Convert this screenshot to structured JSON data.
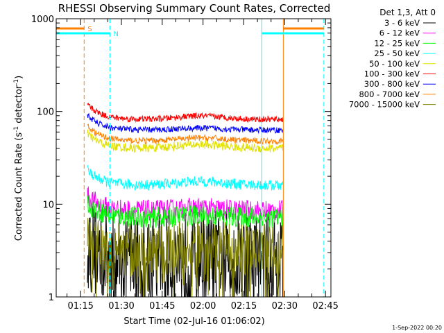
{
  "chart_data": {
    "type": "line",
    "title": "RHESSI Observing Summary Count Rates, Corrected",
    "xlabel": "Start Time (02-Jul-16 01:06:02)",
    "ylabel_main": "Corrected Count Rate (s",
    "ylabel_sup1": "-1",
    "ylabel_mid": " detector",
    "ylabel_sup2": "-1",
    "ylabel_end": ")",
    "y_scale": "log",
    "ylim": [
      1,
      1000
    ],
    "y_ticks": [
      {
        "value": 1,
        "label": "1"
      },
      {
        "value": 10,
        "label": "10"
      },
      {
        "value": 100,
        "label": "100"
      },
      {
        "value": 1000,
        "label": "1000"
      }
    ],
    "xlim_minutes": [
      66.03,
      167.0
    ],
    "x_ticks": [
      {
        "minutes": 75,
        "label": "01:15"
      },
      {
        "minutes": 90,
        "label": "01:30"
      },
      {
        "minutes": 105,
        "label": "01:45"
      },
      {
        "minutes": 120,
        "label": "02:00"
      },
      {
        "minutes": 135,
        "label": "02:15"
      },
      {
        "minutes": 150,
        "label": "02:30"
      },
      {
        "minutes": 165,
        "label": "02:45"
      }
    ],
    "legend_placement": "right, outside plot",
    "legend_header": "Det 1,3, Att 0",
    "series": [
      {
        "name": "3 - 6 keV",
        "color": "#000000",
        "level": 2.6,
        "noise": 0.55,
        "bump": 0.02
      },
      {
        "name": "6 - 12 keV",
        "color": "#ff00ff",
        "level": 8.5,
        "noise": 0.12,
        "bump": 0.06
      },
      {
        "name": "12 - 25 keV",
        "color": "#00ff00",
        "level": 7.2,
        "noise": 0.12,
        "bump": 0.05
      },
      {
        "name": "25 - 50 keV",
        "color": "#00ffff",
        "level": 16.0,
        "noise": 0.06,
        "bump": 0.1
      },
      {
        "name": "50 - 100 keV",
        "color": "#e0e000",
        "level": 40.0,
        "noise": 0.05,
        "bump": 0.1
      },
      {
        "name": "100 - 300 keV",
        "color": "#ff0000",
        "level": 82.0,
        "noise": 0.035,
        "bump": 0.09
      },
      {
        "name": "300 - 800 keV",
        "color": "#0000ff",
        "level": 63.0,
        "noise": 0.035,
        "bump": 0.05
      },
      {
        "name": "800 - 7000 keV",
        "color": "#ff8000",
        "level": 48.0,
        "noise": 0.035,
        "bump": 0.08
      },
      {
        "name": "7000 - 15000 keV",
        "color": "#808000",
        "level": 3.2,
        "noise": 0.3,
        "bump": 0.12
      }
    ],
    "data_start_minutes": 77.5,
    "data_end_minutes": 149.5,
    "markers": [
      {
        "label": "S",
        "color": "#ff8000",
        "style": "dashed",
        "minutes": 76.3
      },
      {
        "label": "N",
        "color": "#00ffff",
        "style": "dashed",
        "minutes": 85.8
      },
      {
        "label": "",
        "color": "#00ffff",
        "style": "solid",
        "minutes": 141.6
      },
      {
        "label": "",
        "color": "#ff8000",
        "style": "solid",
        "minutes": 149.5
      },
      {
        "label": "",
        "color": "#00ffff",
        "style": "dashed",
        "minutes": 164.4
      }
    ],
    "footer_timestamp": "1-Sep-2022 00:20"
  }
}
